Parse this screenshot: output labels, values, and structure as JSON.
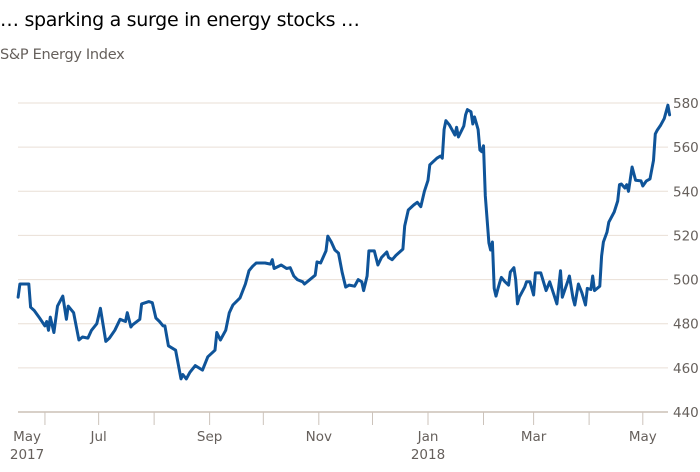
{
  "chart_data": {
    "type": "line",
    "title": "… sparking a surge in energy stocks …",
    "subtitle": "S&P Energy Index",
    "xlabel": "",
    "ylabel": "",
    "ylim": [
      440,
      580
    ],
    "yticks": [
      440,
      460,
      480,
      500,
      520,
      540,
      560,
      580
    ],
    "y_axis_side": "right",
    "grid": true,
    "line_color": "#0f5499",
    "grid_color": "#e9dfd6",
    "x_tick_marks": [
      "2017-06-01",
      "2017-07-01",
      "2017-08-01",
      "2017-09-01",
      "2017-10-01",
      "2017-11-01",
      "2017-12-01",
      "2018-01-01",
      "2018-02-01",
      "2018-03-01",
      "2018-04-01",
      "2018-05-01"
    ],
    "x_labels": [
      {
        "month": "May",
        "year": "2017",
        "date": "2017-05-22"
      },
      {
        "month": "Jul",
        "year": "",
        "date": "2017-07-01"
      },
      {
        "month": "Sep",
        "year": "",
        "date": "2017-09-01"
      },
      {
        "month": "Nov",
        "year": "",
        "date": "2017-11-01"
      },
      {
        "month": "Jan",
        "year": "2018",
        "date": "2018-01-01"
      },
      {
        "month": "Mar",
        "year": "",
        "date": "2018-03-01"
      },
      {
        "month": "May",
        "year": "",
        "date": "2018-05-01"
      }
    ],
    "series": [
      {
        "points": [
          [
            "2017-05-17",
            492
          ],
          [
            "2017-05-18",
            498
          ],
          [
            "2017-05-21",
            498
          ],
          [
            "2017-05-23",
            498
          ],
          [
            "2017-05-24",
            487.5
          ],
          [
            "2017-05-26",
            486
          ],
          [
            "2017-05-29",
            482.6
          ],
          [
            "2017-06-01",
            479
          ],
          [
            "2017-06-02",
            481
          ],
          [
            "2017-06-03",
            477
          ],
          [
            "2017-06-04",
            483
          ],
          [
            "2017-06-06",
            476
          ],
          [
            "2017-06-08",
            488
          ],
          [
            "2017-06-11",
            492.5
          ],
          [
            "2017-06-13",
            482
          ],
          [
            "2017-06-14",
            488
          ],
          [
            "2017-06-17",
            485
          ],
          [
            "2017-06-20",
            472.6
          ],
          [
            "2017-06-22",
            474
          ],
          [
            "2017-06-25",
            473.5
          ],
          [
            "2017-06-27",
            477
          ],
          [
            "2017-06-30",
            480
          ],
          [
            "2017-07-02",
            487
          ],
          [
            "2017-07-05",
            472
          ],
          [
            "2017-07-07",
            473.5
          ],
          [
            "2017-07-10",
            477
          ],
          [
            "2017-07-13",
            482
          ],
          [
            "2017-07-16",
            481
          ],
          [
            "2017-07-17",
            485
          ],
          [
            "2017-07-19",
            478.5
          ],
          [
            "2017-07-20",
            479.5
          ],
          [
            "2017-07-24",
            482
          ],
          [
            "2017-07-25",
            489
          ],
          [
            "2017-07-29",
            490
          ],
          [
            "2017-07-31",
            489.5
          ],
          [
            "2017-08-02",
            482.6
          ],
          [
            "2017-08-04",
            481
          ],
          [
            "2017-08-06",
            479
          ],
          [
            "2017-08-07",
            479
          ],
          [
            "2017-08-09",
            470
          ],
          [
            "2017-08-13",
            468
          ],
          [
            "2017-08-16",
            455
          ],
          [
            "2017-08-17",
            457
          ],
          [
            "2017-08-19",
            455
          ],
          [
            "2017-08-21",
            458
          ],
          [
            "2017-08-24",
            461
          ],
          [
            "2017-08-26",
            460
          ],
          [
            "2017-08-28",
            459
          ],
          [
            "2017-08-31",
            465
          ],
          [
            "2017-09-04",
            468
          ],
          [
            "2017-09-05",
            476
          ],
          [
            "2017-09-07",
            472.6
          ],
          [
            "2017-09-10",
            477
          ],
          [
            "2017-09-12",
            485
          ],
          [
            "2017-09-14",
            488.5
          ],
          [
            "2017-09-18",
            491.7
          ],
          [
            "2017-09-21",
            498
          ],
          [
            "2017-09-23",
            504
          ],
          [
            "2017-09-25",
            506
          ],
          [
            "2017-09-27",
            507.5
          ],
          [
            "2017-10-02",
            507.5
          ],
          [
            "2017-10-05",
            507
          ],
          [
            "2017-10-06",
            509
          ],
          [
            "2017-10-07",
            505
          ],
          [
            "2017-10-11",
            506.6
          ],
          [
            "2017-10-14",
            505
          ],
          [
            "2017-10-16",
            505.4
          ],
          [
            "2017-10-18",
            501.6
          ],
          [
            "2017-10-20",
            500
          ],
          [
            "2017-10-23",
            499
          ],
          [
            "2017-10-24",
            498
          ],
          [
            "2017-10-27",
            500
          ],
          [
            "2017-10-30",
            502
          ],
          [
            "2017-10-31",
            508
          ],
          [
            "2017-11-02",
            507.5
          ],
          [
            "2017-11-05",
            513
          ],
          [
            "2017-11-06",
            519.7
          ],
          [
            "2017-11-08",
            517
          ],
          [
            "2017-11-10",
            513.4
          ],
          [
            "2017-11-12",
            512
          ],
          [
            "2017-11-14",
            503.4
          ],
          [
            "2017-11-16",
            496.6
          ],
          [
            "2017-11-18",
            497.5
          ],
          [
            "2017-11-21",
            497
          ],
          [
            "2017-11-23",
            500
          ],
          [
            "2017-11-25",
            499
          ],
          [
            "2017-11-26",
            495
          ],
          [
            "2017-11-28",
            501.6
          ],
          [
            "2017-11-29",
            513
          ],
          [
            "2017-12-02",
            513
          ],
          [
            "2017-12-04",
            506.6
          ],
          [
            "2017-12-06",
            510
          ],
          [
            "2017-12-09",
            512.5
          ],
          [
            "2017-12-10",
            510
          ],
          [
            "2017-12-12",
            509
          ],
          [
            "2017-12-14",
            510.9
          ],
          [
            "2017-12-18",
            513.8
          ],
          [
            "2017-12-19",
            524.3
          ],
          [
            "2017-12-21",
            531.5
          ],
          [
            "2017-12-24",
            533.8
          ],
          [
            "2017-12-26",
            535
          ],
          [
            "2017-12-28",
            533
          ],
          [
            "2017-12-30",
            540
          ],
          [
            "2018-01-01",
            545
          ],
          [
            "2018-01-02",
            552
          ],
          [
            "2018-01-06",
            555
          ],
          [
            "2018-01-08",
            556
          ],
          [
            "2018-01-09",
            555
          ],
          [
            "2018-01-10",
            568
          ],
          [
            "2018-01-11",
            572
          ],
          [
            "2018-01-13",
            570
          ],
          [
            "2018-01-16",
            565.5
          ],
          [
            "2018-01-17",
            569
          ],
          [
            "2018-01-18",
            564.6
          ],
          [
            "2018-01-21",
            569.6
          ],
          [
            "2018-01-22",
            574.6
          ],
          [
            "2018-01-23",
            577
          ],
          [
            "2018-01-25",
            576
          ],
          [
            "2018-01-26",
            570.5
          ],
          [
            "2018-01-27",
            573.7
          ],
          [
            "2018-01-29",
            568
          ],
          [
            "2018-01-30",
            558.7
          ],
          [
            "2018-01-31",
            558
          ],
          [
            "2018-02-01",
            560.6
          ],
          [
            "2018-02-02",
            538
          ],
          [
            "2018-02-04",
            516.6
          ],
          [
            "2018-02-05",
            513.4
          ],
          [
            "2018-02-06",
            517
          ],
          [
            "2018-02-07",
            496
          ],
          [
            "2018-02-08",
            492.5
          ],
          [
            "2018-02-09",
            495.6
          ],
          [
            "2018-02-10",
            498.5
          ],
          [
            "2018-02-11",
            501
          ],
          [
            "2018-02-13",
            499
          ],
          [
            "2018-02-15",
            497.5
          ],
          [
            "2018-02-16",
            503.4
          ],
          [
            "2018-02-18",
            505.4
          ],
          [
            "2018-02-19",
            500
          ],
          [
            "2018-02-20",
            489
          ],
          [
            "2018-02-21",
            492
          ],
          [
            "2018-02-24",
            496.6
          ],
          [
            "2018-02-25",
            499
          ],
          [
            "2018-02-27",
            499
          ],
          [
            "2018-03-01",
            493
          ],
          [
            "2018-03-02",
            503
          ],
          [
            "2018-03-05",
            503
          ],
          [
            "2018-03-08",
            495
          ],
          [
            "2018-03-10",
            499
          ],
          [
            "2018-03-12",
            494
          ],
          [
            "2018-03-14",
            489
          ],
          [
            "2018-03-16",
            504
          ],
          [
            "2018-03-17",
            492
          ],
          [
            "2018-03-20",
            499
          ],
          [
            "2018-03-21",
            501.6
          ],
          [
            "2018-03-23",
            491.6
          ],
          [
            "2018-03-24",
            488.5
          ],
          [
            "2018-03-26",
            498
          ],
          [
            "2018-03-28",
            494
          ],
          [
            "2018-03-30",
            488.5
          ],
          [
            "2018-03-31",
            496
          ],
          [
            "2018-04-02",
            495.5
          ],
          [
            "2018-04-03",
            501.6
          ],
          [
            "2018-04-04",
            495
          ],
          [
            "2018-04-07",
            497
          ],
          [
            "2018-04-08",
            510.7
          ],
          [
            "2018-04-09",
            517
          ],
          [
            "2018-04-11",
            521.5
          ],
          [
            "2018-04-12",
            526
          ],
          [
            "2018-04-15",
            530.6
          ],
          [
            "2018-04-17",
            535.6
          ],
          [
            "2018-04-18",
            543
          ],
          [
            "2018-04-19",
            543.3
          ],
          [
            "2018-04-21",
            541.5
          ],
          [
            "2018-04-22",
            543
          ],
          [
            "2018-04-23",
            540
          ],
          [
            "2018-04-25",
            551
          ],
          [
            "2018-04-27",
            545
          ],
          [
            "2018-04-30",
            544.7
          ],
          [
            "2018-05-01",
            542.4
          ],
          [
            "2018-05-03",
            544.7
          ],
          [
            "2018-05-05",
            545.6
          ],
          [
            "2018-05-07",
            554
          ],
          [
            "2018-05-08",
            566
          ],
          [
            "2018-05-09",
            567.6
          ],
          [
            "2018-05-11",
            570
          ],
          [
            "2018-05-13",
            573
          ],
          [
            "2018-05-15",
            579
          ],
          [
            "2018-05-16",
            574.6
          ]
        ]
      }
    ]
  }
}
